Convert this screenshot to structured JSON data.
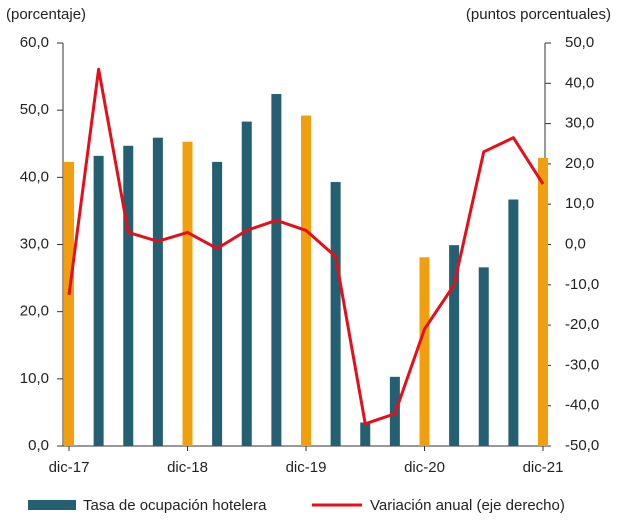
{
  "chart_data": {
    "type": "bar_line",
    "y_label": "(porcentaje)",
    "y2_label": "(puntos porcentuales)",
    "categories": [
      "dic-17",
      null,
      null,
      null,
      "dic-18",
      null,
      null,
      null,
      "dic-19",
      null,
      null,
      null,
      "dic-20",
      null,
      null,
      null,
      "dic-21"
    ],
    "series": [
      {
        "name": "Tasa de ocupación hotelera",
        "type": "bar",
        "color": "#255f72",
        "colors": [
          "#f0a00e",
          "#255f72",
          "#255f72",
          "#255f72",
          "#f0a00e",
          "#255f72",
          "#255f72",
          "#255f72",
          "#f0a00e",
          "#255f72",
          "#255f72",
          "#255f72",
          "#f0a00e",
          "#255f72",
          "#255f72",
          "#255f72",
          "#f0a00e"
        ],
        "values": [
          42.3,
          43.2,
          44.7,
          45.9,
          45.3,
          42.3,
          48.3,
          52.4,
          49.2,
          39.3,
          3.5,
          10.3,
          28.1,
          29.9,
          26.6,
          36.7,
          42.9
        ]
      },
      {
        "name": "Variación anual (eje derecho)",
        "type": "line",
        "axis": "y2",
        "color": "#e3101c",
        "values": [
          -12.5,
          43.5,
          3,
          0.8,
          3,
          -1,
          3.5,
          6,
          3.5,
          -3,
          -44.5,
          -42,
          -21,
          -10,
          23,
          26.5,
          15
        ]
      }
    ],
    "ylim": [
      0,
      60
    ],
    "yticks": [
      {
        "value": 0,
        "label": "0,0"
      },
      {
        "value": 10,
        "label": "10,0"
      },
      {
        "value": 20,
        "label": "20,0"
      },
      {
        "value": 30,
        "label": "30,0"
      },
      {
        "value": 40,
        "label": "40,0"
      },
      {
        "value": 50,
        "label": "50,0"
      },
      {
        "value": 60,
        "label": "60,0"
      }
    ],
    "y2lim": [
      -50,
      50
    ],
    "y2ticks": [
      {
        "value": -50,
        "label": "-50,0"
      },
      {
        "value": -40,
        "label": "-40,0"
      },
      {
        "value": -30,
        "label": "-30,0"
      },
      {
        "value": -20,
        "label": "-20,0"
      },
      {
        "value": -10,
        "label": "-10,0"
      },
      {
        "value": 0,
        "label": "0,0"
      },
      {
        "value": 10,
        "label": "10,0"
      },
      {
        "value": 20,
        "label": "20,0"
      },
      {
        "value": 30,
        "label": "30,0"
      },
      {
        "value": 40,
        "label": "40,0"
      },
      {
        "value": 50,
        "label": "50,0"
      }
    ]
  }
}
